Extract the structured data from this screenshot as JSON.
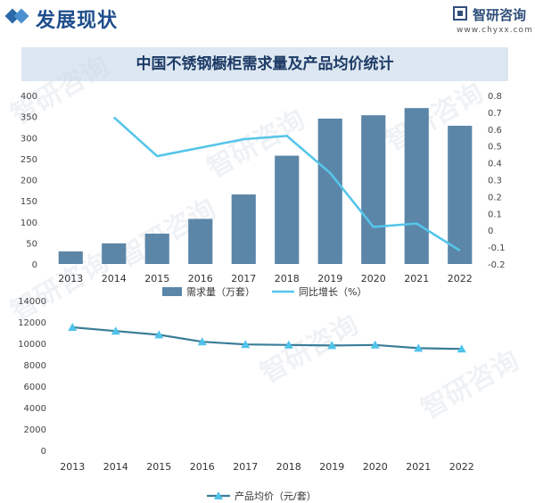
{
  "header": {
    "title": "发展现状",
    "brand_name": "智研咨询",
    "brand_url": "www.chyxx.com"
  },
  "watermark": "智研咨询",
  "chart_data": [
    {
      "type": "bar+line",
      "title": "中国不锈钢橱柜需求量及产品均价统计",
      "categories": [
        "2013",
        "2014",
        "2015",
        "2016",
        "2017",
        "2018",
        "2019",
        "2020",
        "2021",
        "2022"
      ],
      "series": [
        {
          "name": "需求量（万套）",
          "type": "bar",
          "axis": "left",
          "color": "#5b86a8",
          "values": [
            30,
            49,
            72,
            107,
            165,
            257,
            345,
            353,
            370,
            328
          ]
        },
        {
          "name": "同比增长（%）",
          "type": "line",
          "axis": "right",
          "color": "#56c5ea",
          "values": [
            null,
            0.67,
            0.44,
            0.49,
            0.54,
            0.56,
            0.34,
            0.02,
            0.04,
            -0.12
          ]
        }
      ],
      "y_left": {
        "min": 0,
        "max": 400,
        "ticks": [
          "0",
          "50",
          "100",
          "150",
          "200",
          "250",
          "300",
          "350",
          "400"
        ]
      },
      "y_right": {
        "min": -0.2,
        "max": 0.8,
        "ticks": [
          "-0.2",
          "-0.1",
          "0",
          "0.1",
          "0.2",
          "0.3",
          "0.4",
          "0.5",
          "0.6",
          "0.7",
          "0.8"
        ]
      },
      "legend_position": "bottom"
    },
    {
      "type": "line",
      "categories": [
        "2013",
        "2014",
        "2015",
        "2016",
        "2017",
        "2018",
        "2019",
        "2020",
        "2021",
        "2022"
      ],
      "series": [
        {
          "name": "产品均价（元/套）",
          "color": "#3a7d99",
          "marker_color": "#4fc3ea",
          "values": [
            11500,
            11150,
            10800,
            10150,
            9900,
            9850,
            9800,
            9850,
            9550,
            9480
          ]
        }
      ],
      "y": {
        "min": 0,
        "max": 14000,
        "ticks": [
          "0",
          "2000",
          "4000",
          "6000",
          "8000",
          "10000",
          "12000",
          "14000"
        ]
      },
      "legend_position": "bottom"
    }
  ]
}
